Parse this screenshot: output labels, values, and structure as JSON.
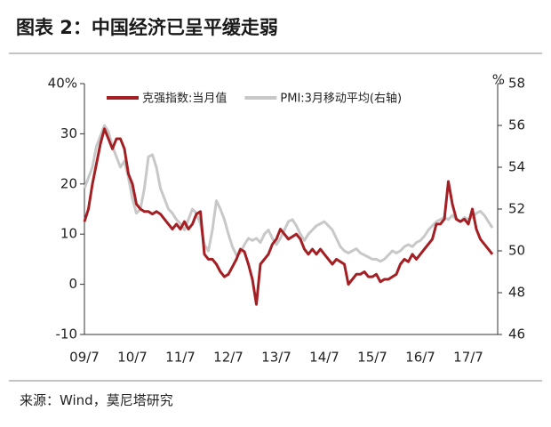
{
  "chart_data": {
    "type": "line",
    "title": "图表 2：中国经济已呈平缓走弱",
    "source": "来源：Wind，莫尼塔研究",
    "y2_unit": "%",
    "categories": [
      "09/7",
      null,
      null,
      null,
      null,
      null,
      null,
      null,
      null,
      null,
      null,
      null,
      "10/7",
      null,
      null,
      null,
      null,
      null,
      null,
      null,
      null,
      null,
      null,
      null,
      "11/7",
      null,
      null,
      null,
      null,
      null,
      null,
      null,
      null,
      null,
      null,
      null,
      "12/7",
      null,
      null,
      null,
      null,
      null,
      null,
      null,
      null,
      null,
      null,
      null,
      "13/7",
      null,
      null,
      null,
      null,
      null,
      null,
      null,
      null,
      null,
      null,
      null,
      "14/7",
      null,
      null,
      null,
      null,
      null,
      null,
      null,
      null,
      null,
      null,
      null,
      "15/7",
      null,
      null,
      null,
      null,
      null,
      null,
      null,
      null,
      null,
      null,
      null,
      "16/7",
      null,
      null,
      null,
      null,
      null,
      null,
      null,
      null,
      null,
      null,
      null,
      "17/7",
      null,
      null,
      null,
      null,
      null,
      null
    ],
    "series": [
      {
        "name": "克强指数:当月值",
        "color": "#a31f24",
        "axis": "y",
        "values": [
          12.5,
          15,
          20,
          24,
          28,
          31,
          29,
          27,
          29,
          29,
          27,
          22,
          20,
          16,
          15,
          14.5,
          14.5,
          14,
          14.5,
          14,
          13,
          12,
          11,
          12,
          11,
          12.5,
          11,
          12,
          14,
          14.5,
          6,
          5,
          5,
          4,
          2.5,
          1.5,
          2,
          3.5,
          5,
          7,
          6.5,
          4,
          1,
          -4,
          4,
          5,
          6,
          8,
          9,
          11,
          10,
          9,
          9.5,
          10,
          9,
          7,
          6,
          7,
          6,
          7,
          6,
          5,
          4,
          5,
          4.5,
          4,
          0,
          1,
          2,
          2,
          2.5,
          1.5,
          1.5,
          2,
          0.5,
          1,
          1,
          1.5,
          2,
          4,
          5,
          4.5,
          6,
          5,
          6,
          7,
          8,
          9,
          12,
          12,
          13,
          20.5,
          16,
          13,
          12.5,
          13,
          12,
          15,
          11,
          9,
          8,
          7,
          6
        ]
      },
      {
        "name": "PMI:3月移动平均(右轴)",
        "color": "#c8c8c8",
        "axis": "y2",
        "values": [
          53,
          53.5,
          54,
          55,
          55.5,
          56,
          55.7,
          55,
          54.5,
          54,
          54.3,
          53.5,
          52.5,
          51.8,
          52,
          53,
          54.5,
          54.6,
          54,
          53,
          52.5,
          52,
          51.8,
          51.5,
          51.3,
          51,
          51.5,
          52,
          51.8,
          51.3,
          50.3,
          50,
          51,
          52.4,
          52,
          51.5,
          50.8,
          50.2,
          49.8,
          49.9,
          50.3,
          50.6,
          50.5,
          50.6,
          50.4,
          50.8,
          51,
          50.6,
          50.3,
          50.6,
          51,
          51.4,
          51.5,
          51.2,
          50.8,
          50.5,
          50.8,
          51,
          51.2,
          51.3,
          51.4,
          51.2,
          51,
          50.6,
          50.2,
          50,
          49.9,
          50,
          50.1,
          49.9,
          49.8,
          49.7,
          49.6,
          49.6,
          49.5,
          49.6,
          49.8,
          50,
          49.9,
          50,
          50.2,
          50.3,
          50.2,
          50.4,
          50.5,
          50.7,
          51,
          51.2,
          51.4,
          51.5,
          51.6,
          51.5,
          51.7,
          51.5,
          51.4,
          51.6,
          51.5,
          51.6,
          51.8,
          51.9,
          51.7,
          51.4,
          51.1
        ]
      }
    ],
    "ylim": [
      -10,
      40
    ],
    "yticks": [
      -10,
      0,
      10,
      20,
      30,
      {
        "value": 40,
        "label": "40%"
      }
    ],
    "y2lim": [
      46,
      58
    ],
    "y2ticks": [
      46,
      48,
      50,
      52,
      54,
      56,
      58
    ],
    "legend": "top"
  }
}
